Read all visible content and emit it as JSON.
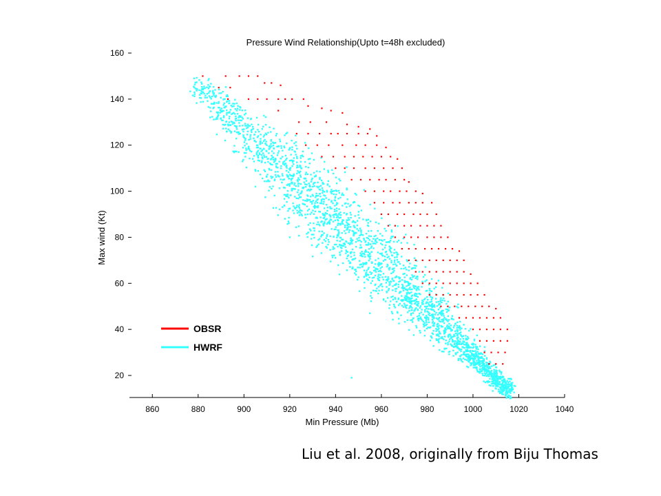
{
  "slide": {
    "caption": "Liu et al. 2008, originally from Biju Thomas"
  },
  "chart_data": {
    "type": "scatter",
    "title": "Pressure Wind Relationship(Upto t=48h excluded)",
    "xlabel": "Min Pressure (Mb)",
    "ylabel": "Max wind (Kt)",
    "xlim": [
      850,
      1040
    ],
    "ylim": [
      10,
      165
    ],
    "xticks": [
      860,
      880,
      900,
      920,
      940,
      960,
      980,
      1000,
      1020,
      1040
    ],
    "yticks": [
      20,
      40,
      60,
      80,
      100,
      120,
      140,
      160
    ],
    "grid": false,
    "legend": {
      "placement": "bottom-left",
      "entries": [
        "OBSR",
        "HWRF"
      ]
    },
    "series": [
      {
        "name": "OBSR",
        "color": "#ff0000",
        "points": [
          [
            882,
            150
          ],
          [
            892,
            150
          ],
          [
            898,
            150
          ],
          [
            902,
            150
          ],
          [
            906,
            150
          ],
          [
            889,
            145
          ],
          [
            894,
            145
          ],
          [
            909,
            147
          ],
          [
            912,
            147
          ],
          [
            916,
            146
          ],
          [
            893,
            140
          ],
          [
            902,
            140
          ],
          [
            906,
            140
          ],
          [
            910,
            140
          ],
          [
            915,
            140
          ],
          [
            918,
            140
          ],
          [
            921,
            140
          ],
          [
            926,
            140
          ],
          [
            915,
            135
          ],
          [
            928,
            137
          ],
          [
            934,
            136
          ],
          [
            938,
            135
          ],
          [
            943,
            134
          ],
          [
            924,
            130
          ],
          [
            929,
            130
          ],
          [
            936,
            130
          ],
          [
            945,
            129
          ],
          [
            950,
            128
          ],
          [
            955,
            127
          ],
          [
            923,
            125
          ],
          [
            928,
            125
          ],
          [
            933,
            125
          ],
          [
            938,
            125
          ],
          [
            941,
            125
          ],
          [
            945,
            125
          ],
          [
            950,
            125
          ],
          [
            954,
            125
          ],
          [
            958,
            124
          ],
          [
            927,
            120
          ],
          [
            932,
            120
          ],
          [
            937,
            120
          ],
          [
            943,
            120
          ],
          [
            949,
            120
          ],
          [
            953,
            120
          ],
          [
            958,
            120
          ],
          [
            962,
            119
          ],
          [
            934,
            115
          ],
          [
            939,
            115
          ],
          [
            944,
            115
          ],
          [
            948,
            115
          ],
          [
            952,
            115
          ],
          [
            956,
            115
          ],
          [
            960,
            115
          ],
          [
            964,
            115
          ],
          [
            967,
            114
          ],
          [
            940,
            110
          ],
          [
            944,
            110
          ],
          [
            948,
            110
          ],
          [
            953,
            110
          ],
          [
            957,
            110
          ],
          [
            961,
            110
          ],
          [
            965,
            110
          ],
          [
            969,
            110
          ],
          [
            947,
            105
          ],
          [
            951,
            105
          ],
          [
            955,
            105
          ],
          [
            959,
            105
          ],
          [
            962,
            105
          ],
          [
            966,
            105
          ],
          [
            970,
            105
          ],
          [
            972,
            104
          ],
          [
            953,
            100
          ],
          [
            957,
            100
          ],
          [
            961,
            100
          ],
          [
            964,
            100
          ],
          [
            968,
            100
          ],
          [
            971,
            100
          ],
          [
            975,
            100
          ],
          [
            978,
            99
          ],
          [
            957,
            95
          ],
          [
            961,
            95
          ],
          [
            965,
            95
          ],
          [
            968,
            95
          ],
          [
            972,
            95
          ],
          [
            975,
            95
          ],
          [
            978,
            95
          ],
          [
            982,
            95
          ],
          [
            960,
            90
          ],
          [
            963,
            90
          ],
          [
            967,
            90
          ],
          [
            970,
            90
          ],
          [
            974,
            90
          ],
          [
            977,
            90
          ],
          [
            980,
            90
          ],
          [
            984,
            90
          ],
          [
            963,
            85
          ],
          [
            966,
            85
          ],
          [
            970,
            85
          ],
          [
            973,
            85
          ],
          [
            977,
            85
          ],
          [
            980,
            85
          ],
          [
            983,
            85
          ],
          [
            986,
            85
          ],
          [
            966,
            80
          ],
          [
            970,
            80
          ],
          [
            973,
            80
          ],
          [
            976,
            80
          ],
          [
            980,
            80
          ],
          [
            983,
            80
          ],
          [
            986,
            80
          ],
          [
            989,
            80
          ],
          [
            969,
            75
          ],
          [
            972,
            75
          ],
          [
            975,
            75
          ],
          [
            979,
            75
          ],
          [
            982,
            75
          ],
          [
            985,
            75
          ],
          [
            988,
            75
          ],
          [
            991,
            75
          ],
          [
            994,
            74
          ],
          [
            972,
            70
          ],
          [
            975,
            70
          ],
          [
            978,
            70
          ],
          [
            981,
            70
          ],
          [
            984,
            70
          ],
          [
            987,
            70
          ],
          [
            990,
            70
          ],
          [
            993,
            70
          ],
          [
            996,
            70
          ],
          [
            975,
            65
          ],
          [
            978,
            65
          ],
          [
            981,
            65
          ],
          [
            984,
            65
          ],
          [
            987,
            65
          ],
          [
            990,
            65
          ],
          [
            993,
            65
          ],
          [
            996,
            65
          ],
          [
            999,
            64
          ],
          [
            978,
            60
          ],
          [
            981,
            60
          ],
          [
            984,
            60
          ],
          [
            987,
            60
          ],
          [
            990,
            60
          ],
          [
            993,
            60
          ],
          [
            996,
            60
          ],
          [
            999,
            60
          ],
          [
            1002,
            60
          ],
          [
            981,
            55
          ],
          [
            984,
            55
          ],
          [
            987,
            55
          ],
          [
            990,
            55
          ],
          [
            993,
            55
          ],
          [
            996,
            55
          ],
          [
            999,
            55
          ],
          [
            1002,
            55
          ],
          [
            1005,
            55
          ],
          [
            986,
            50
          ],
          [
            989,
            50
          ],
          [
            992,
            50
          ],
          [
            995,
            50
          ],
          [
            998,
            50
          ],
          [
            1001,
            50
          ],
          [
            1004,
            50
          ],
          [
            1007,
            50
          ],
          [
            1010,
            49
          ],
          [
            994,
            45
          ],
          [
            997,
            45
          ],
          [
            1000,
            45
          ],
          [
            1003,
            45
          ],
          [
            1006,
            45
          ],
          [
            1009,
            45
          ],
          [
            1012,
            45
          ],
          [
            1000,
            40
          ],
          [
            1003,
            40
          ],
          [
            1006,
            40
          ],
          [
            1009,
            40
          ],
          [
            1012,
            40
          ],
          [
            1015,
            40
          ],
          [
            1003,
            35
          ],
          [
            1006,
            35
          ],
          [
            1009,
            35
          ],
          [
            1012,
            35
          ],
          [
            1015,
            35
          ],
          [
            1005,
            30
          ],
          [
            1008,
            30
          ],
          [
            1011,
            30
          ],
          [
            1014,
            30
          ],
          [
            1007,
            25
          ],
          [
            1010,
            25
          ],
          [
            1013,
            25
          ]
        ]
      },
      {
        "name": "HWRF",
        "color": "#33ffff",
        "generator": "dense band from (878,148) to (1017,12); sampled deterministically in script"
      }
    ]
  }
}
